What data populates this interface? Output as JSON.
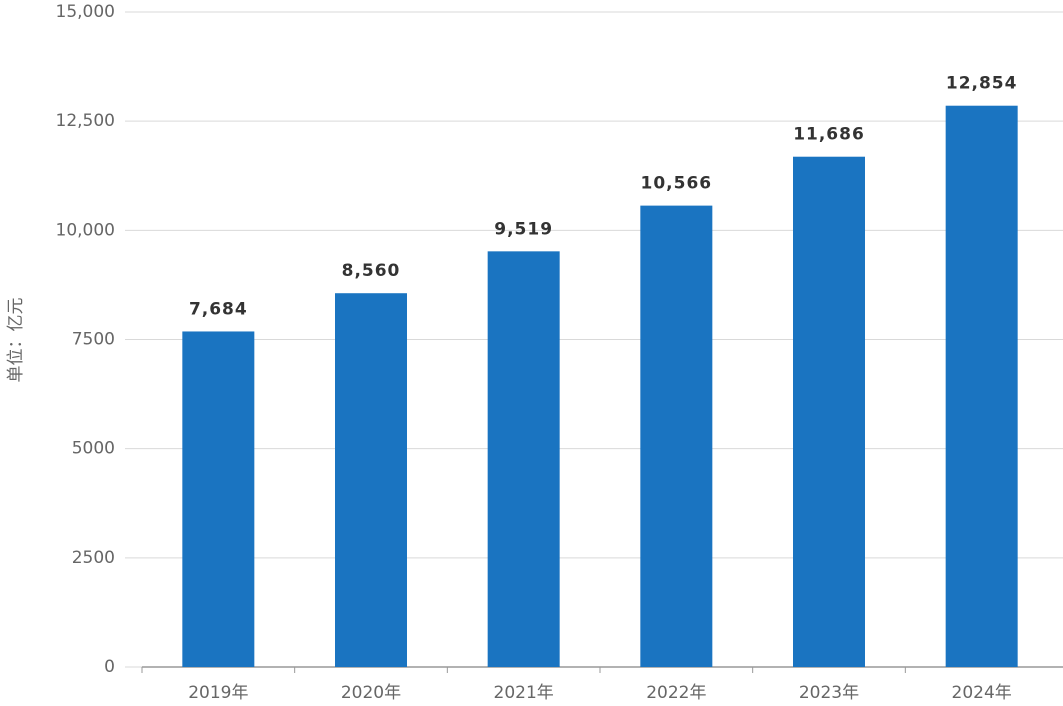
{
  "chart_data": {
    "type": "bar",
    "y_label": "单位：亿元",
    "categories": [
      "2019年",
      "2020年",
      "2021年",
      "2022年",
      "2023年",
      "2024年"
    ],
    "values": [
      7684,
      8560,
      9519,
      10566,
      11686,
      12854
    ],
    "value_labels": [
      "7,684",
      "8,560",
      "9,519",
      "10,566",
      "11,686",
      "12,854"
    ],
    "color": "#1a74c1",
    "ylim": [
      0,
      15000
    ],
    "yticks": [
      0,
      2500,
      5000,
      7500,
      {
        "value": 10000,
        "label": "10,000"
      },
      {
        "value": 12500,
        "label": "12,500"
      },
      {
        "value": 15000,
        "label": "15,000"
      }
    ],
    "grid": true
  }
}
